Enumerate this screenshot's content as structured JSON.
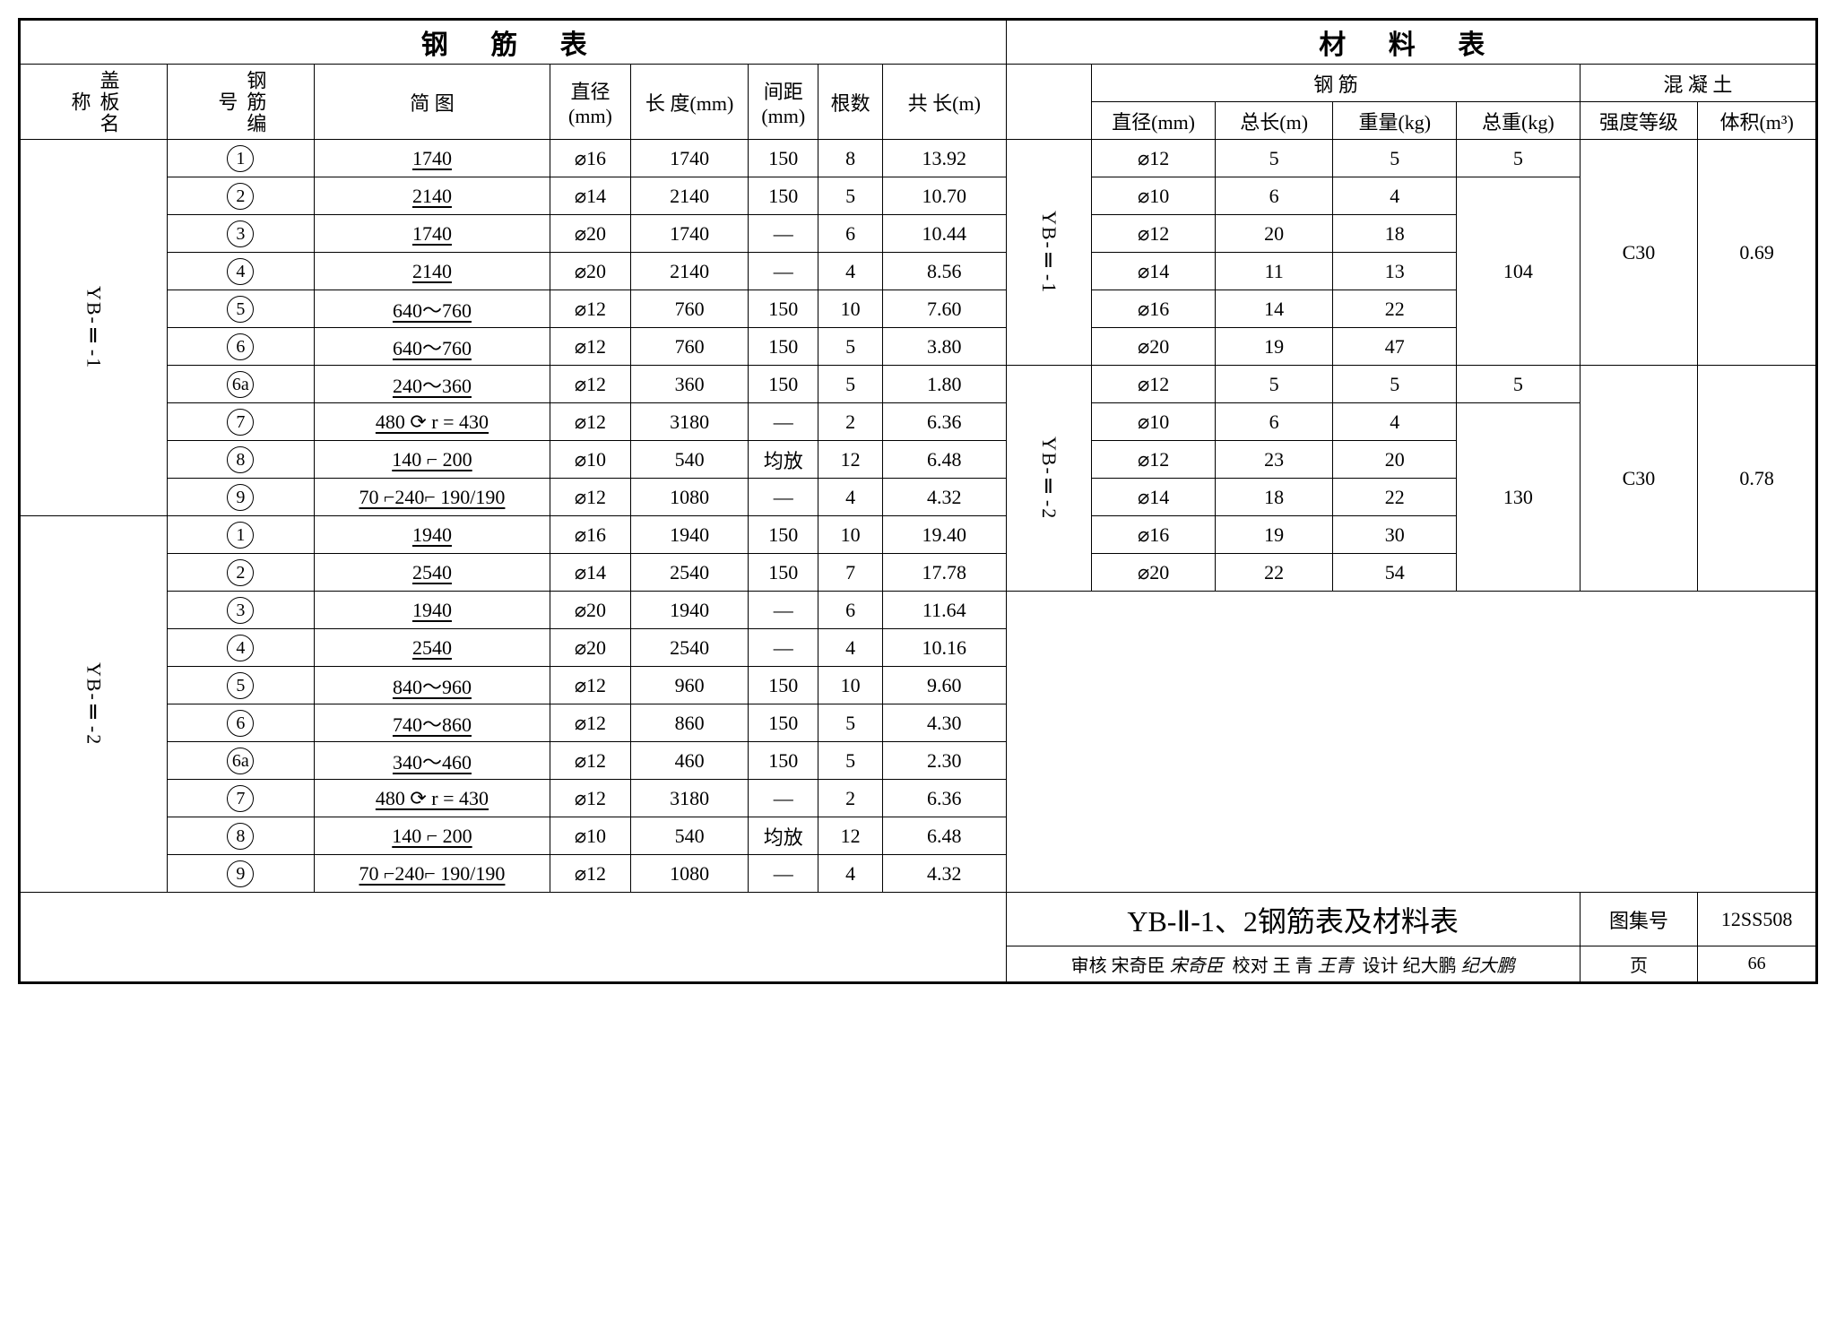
{
  "titles": {
    "left": "钢  筋    表",
    "right": "材    料    表"
  },
  "headers": {
    "gb_name": "盖板名称",
    "rebar_no": "钢筋编号",
    "sketch": "简    图",
    "dia": "直径(mm)",
    "length": "长 度(mm)",
    "spacing": "间距(mm)",
    "count": "根数",
    "total_len": "共 长(m)",
    "rebar": "钢    筋",
    "concrete": "混  凝  土",
    "dia2": "直径(mm)",
    "total_len2": "总长(m)",
    "weight": "重量(kg)",
    "total_weight": "总重(kg)",
    "grade": "强度等级",
    "volume": "体积(m³)"
  },
  "groups": [
    {
      "name": "YB-Ⅱ-1",
      "rows": [
        {
          "no": "1",
          "sk": "1740",
          "dia": "⌀16",
          "len": "1740",
          "sp": "150",
          "ct": "8",
          "tl": "13.92"
        },
        {
          "no": "2",
          "sk": "2140",
          "dia": "⌀14",
          "len": "2140",
          "sp": "150",
          "ct": "5",
          "tl": "10.70"
        },
        {
          "no": "3",
          "sk": "1740",
          "dia": "⌀20",
          "len": "1740",
          "sp": "—",
          "ct": "6",
          "tl": "10.44"
        },
        {
          "no": "4",
          "sk": "2140",
          "dia": "⌀20",
          "len": "2140",
          "sp": "—",
          "ct": "4",
          "tl": "8.56"
        },
        {
          "no": "5",
          "sk": "640～760",
          "dia": "⌀12",
          "len": "760",
          "sp": "150",
          "ct": "10",
          "tl": "7.60"
        },
        {
          "no": "6",
          "sk": "640～760",
          "dia": "⌀12",
          "len": "760",
          "sp": "150",
          "ct": "5",
          "tl": "3.80"
        },
        {
          "no": "6a",
          "sk": "240～360",
          "dia": "⌀12",
          "len": "360",
          "sp": "150",
          "ct": "5",
          "tl": "1.80"
        },
        {
          "no": "7",
          "sk": "480 ⟳ r = 430",
          "dia": "⌀12",
          "len": "3180",
          "sp": "—",
          "ct": "2",
          "tl": "6.36"
        },
        {
          "no": "8",
          "sk": "140 ⌐ 200",
          "dia": "⌀10",
          "len": "540",
          "sp": "均放",
          "ct": "12",
          "tl": "6.48"
        },
        {
          "no": "9",
          "sk": "70 ⌐240⌐ 190/190",
          "dia": "⌀12",
          "len": "1080",
          "sp": "—",
          "ct": "4",
          "tl": "4.32"
        }
      ]
    },
    {
      "name": "YB-Ⅱ-2",
      "rows": [
        {
          "no": "1",
          "sk": "1940",
          "dia": "⌀16",
          "len": "1940",
          "sp": "150",
          "ct": "10",
          "tl": "19.40"
        },
        {
          "no": "2",
          "sk": "2540",
          "dia": "⌀14",
          "len": "2540",
          "sp": "150",
          "ct": "7",
          "tl": "17.78"
        },
        {
          "no": "3",
          "sk": "1940",
          "dia": "⌀20",
          "len": "1940",
          "sp": "—",
          "ct": "6",
          "tl": "11.64"
        },
        {
          "no": "4",
          "sk": "2540",
          "dia": "⌀20",
          "len": "2540",
          "sp": "—",
          "ct": "4",
          "tl": "10.16"
        },
        {
          "no": "5",
          "sk": "840～960",
          "dia": "⌀12",
          "len": "960",
          "sp": "150",
          "ct": "10",
          "tl": "9.60"
        },
        {
          "no": "6",
          "sk": "740～860",
          "dia": "⌀12",
          "len": "860",
          "sp": "150",
          "ct": "5",
          "tl": "4.30"
        },
        {
          "no": "6a",
          "sk": "340～460",
          "dia": "⌀12",
          "len": "460",
          "sp": "150",
          "ct": "5",
          "tl": "2.30"
        },
        {
          "no": "7",
          "sk": "480 ⟳ r = 430",
          "dia": "⌀12",
          "len": "3180",
          "sp": "—",
          "ct": "2",
          "tl": "6.36"
        },
        {
          "no": "8",
          "sk": "140 ⌐ 200",
          "dia": "⌀10",
          "len": "540",
          "sp": "均放",
          "ct": "12",
          "tl": "6.48"
        },
        {
          "no": "9",
          "sk": "70 ⌐240⌐ 190/190",
          "dia": "⌀12",
          "len": "1080",
          "sp": "—",
          "ct": "4",
          "tl": "4.32"
        }
      ]
    }
  ],
  "materials": [
    {
      "name": "YB-Ⅱ-1",
      "rows": [
        {
          "dia": "⌀12",
          "tl": "5",
          "wt": "5",
          "tw": "5"
        },
        {
          "dia": "⌀10",
          "tl": "6",
          "wt": "4",
          "tw": ""
        },
        {
          "dia": "⌀12",
          "tl": "20",
          "wt": "18",
          "tw": ""
        },
        {
          "dia": "⌀14",
          "tl": "11",
          "wt": "13",
          "tw": "104"
        },
        {
          "dia": "⌀16",
          "tl": "14",
          "wt": "22",
          "tw": ""
        },
        {
          "dia": "⌀20",
          "tl": "19",
          "wt": "47",
          "tw": ""
        }
      ],
      "grade": "C30",
      "vol": "0.69"
    },
    {
      "name": "YB-Ⅱ-2",
      "rows": [
        {
          "dia": "⌀12",
          "tl": "5",
          "wt": "5",
          "tw": "5"
        },
        {
          "dia": "⌀10",
          "tl": "6",
          "wt": "4",
          "tw": ""
        },
        {
          "dia": "⌀12",
          "tl": "23",
          "wt": "20",
          "tw": ""
        },
        {
          "dia": "⌀14",
          "tl": "18",
          "wt": "22",
          "tw": "130"
        },
        {
          "dia": "⌀16",
          "tl": "19",
          "wt": "30",
          "tw": ""
        },
        {
          "dia": "⌀20",
          "tl": "22",
          "wt": "54",
          "tw": ""
        }
      ],
      "grade": "C30",
      "vol": "0.78"
    }
  ],
  "footer": {
    "title": "YB-Ⅱ-1、2钢筋表及材料表",
    "book_no_label": "图集号",
    "book_no": "12SS508",
    "review": "审核",
    "reviewer": "宋奇臣",
    "rev_sig": "宋奇臣",
    "check": "校对",
    "checker": "王 青",
    "chk_sig": "王青",
    "design": "设计",
    "designer": "纪大鹏",
    "des_sig": "纪大鹏",
    "page_label": "页",
    "page": "66"
  }
}
